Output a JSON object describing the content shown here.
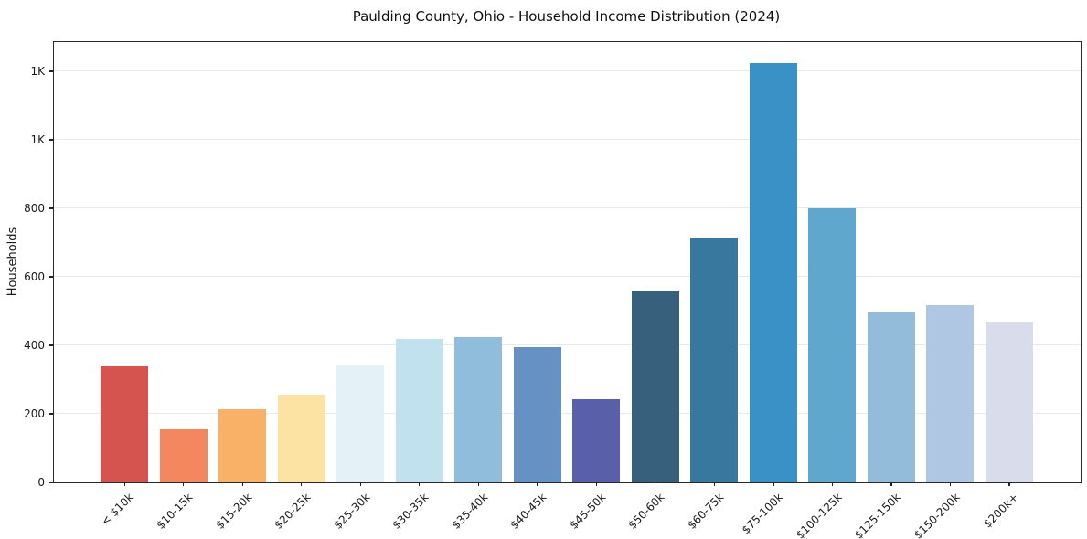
{
  "chart_data": {
    "type": "bar",
    "title": "Paulding County, Ohio - Household Income Distribution (2024)",
    "xlabel": "",
    "ylabel": "Households",
    "categories": [
      "< $10k",
      "$10-15k",
      "$15-20k",
      "$20-25k",
      "$25-30k",
      "$30-35k",
      "$35-40k",
      "$40-45k",
      "$45-50k",
      "$50-60k",
      "$60-75k",
      "$75-100k",
      "$100-125k",
      "$125-150k",
      "$150-200k",
      "$200k+"
    ],
    "values": [
      338,
      155,
      212,
      257,
      341,
      419,
      423,
      394,
      243,
      561,
      715,
      1224,
      799,
      497,
      517,
      466
    ],
    "bar_colors": [
      "#d6544f",
      "#f5875f",
      "#f9b167",
      "#fde3a3",
      "#e4f2f8",
      "#c0e1ed",
      "#90bddc",
      "#6591c5",
      "#5a5fa9",
      "#36607b",
      "#38789f",
      "#3a91c5",
      "#5fa7cd",
      "#93bbda",
      "#afc7e2",
      "#d9dcea"
    ],
    "ylim": [
      0,
      1285
    ],
    "yticks": [
      {
        "value": 0,
        "label": "0"
      },
      {
        "value": 200,
        "label": "200"
      },
      {
        "value": 400,
        "label": "400"
      },
      {
        "value": 600,
        "label": "600"
      },
      {
        "value": 800,
        "label": "800"
      },
      {
        "value": 1000,
        "label": "1K"
      },
      {
        "value": 1200,
        "label": "1K"
      }
    ],
    "grid": true,
    "legend_position": "none"
  }
}
